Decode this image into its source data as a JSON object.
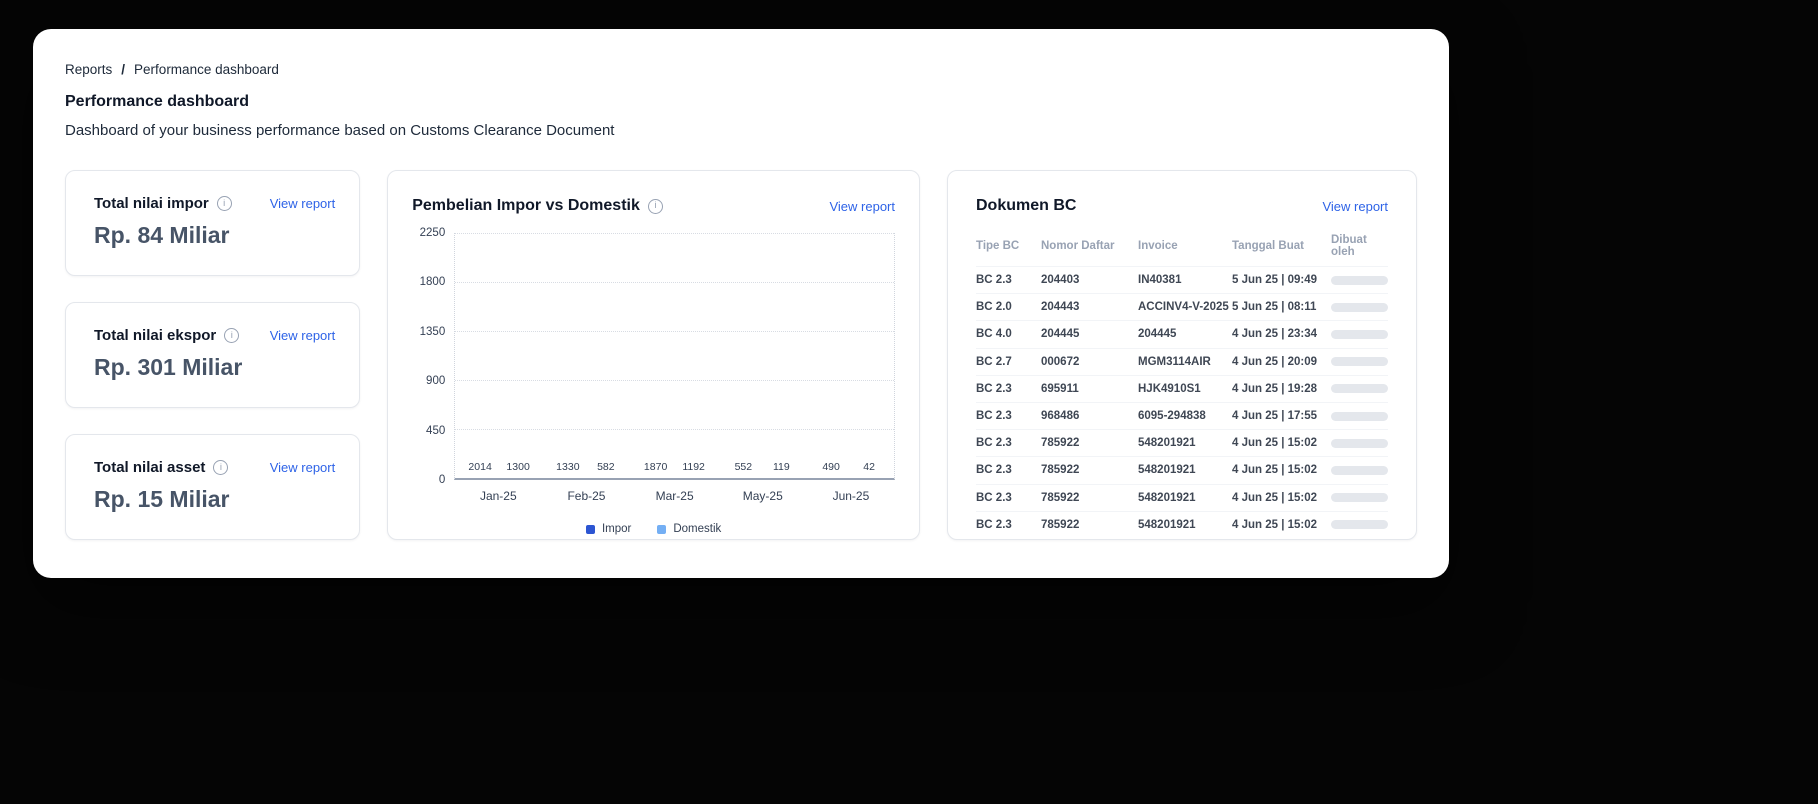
{
  "breadcrumb": {
    "items": [
      "Reports",
      "Performance dashboard"
    ],
    "separator": "/"
  },
  "page": {
    "title": "Performance dashboard",
    "subtitle": "Dashboard of your business performance based on Customs Clearance Document"
  },
  "view_report_label": "View report",
  "stat_cards": [
    {
      "label": "Total nilai impor",
      "value": "Rp. 84 Miliar"
    },
    {
      "label": "Total nilai ekspor",
      "value": "Rp. 301 Miliar"
    },
    {
      "label": "Total nilai asset",
      "value": "Rp. 15 Miliar"
    }
  ],
  "chart_card": {
    "title": "Pembelian Impor vs Domestik",
    "view_report": "View report"
  },
  "chart_data": {
    "type": "bar",
    "title": "Pembelian Impor vs Domestik",
    "categories": [
      "Jan-25",
      "Feb-25",
      "Mar-25",
      "May-25",
      "Jun-25"
    ],
    "series": [
      {
        "name": "Impor",
        "color": "#4B7CE8",
        "legend_color": "#2C55D2",
        "values": [
          2014,
          1330,
          1870,
          552,
          490
        ]
      },
      {
        "name": "Domestik",
        "color": "#AED2FA",
        "legend_color": "#74AFF4",
        "values": [
          1300,
          582,
          1192,
          119,
          42
        ]
      }
    ],
    "ylim": [
      0,
      2250
    ],
    "yticks": [
      2250,
      1800,
      1350,
      900,
      450,
      0
    ],
    "grid": true,
    "legend_position": "bottom",
    "xlabel": "",
    "ylabel": ""
  },
  "table_card": {
    "title": "Dokumen BC",
    "view_report": "View report",
    "columns": [
      "Tipe BC",
      "Nomor Daftar",
      "Invoice",
      "Tanggal Buat",
      "Dibuat oleh"
    ],
    "rows": [
      {
        "tipe": "BC 2.3",
        "nomor": "204403",
        "invoice": "IN40381",
        "tanggal": "5 Jun 25 | 09:49"
      },
      {
        "tipe": "BC 2.0",
        "nomor": "204443",
        "invoice": "ACCINV4-V-2025",
        "tanggal": "5 Jun 25 | 08:11"
      },
      {
        "tipe": "BC 4.0",
        "nomor": "204445",
        "invoice": "204445",
        "tanggal": "4 Jun 25 | 23:34"
      },
      {
        "tipe": "BC 2.7",
        "nomor": "000672",
        "invoice": "MGM3114AIR",
        "tanggal": "4 Jun 25 | 20:09"
      },
      {
        "tipe": "BC 2.3",
        "nomor": "695911",
        "invoice": "HJK4910S1",
        "tanggal": "4 Jun 25 | 19:28"
      },
      {
        "tipe": "BC 2.3",
        "nomor": "968486",
        "invoice": "6095-294838",
        "tanggal": "4 Jun 25 | 17:55"
      },
      {
        "tipe": "BC 2.3",
        "nomor": "785922",
        "invoice": "548201921",
        "tanggal": "4 Jun 25 | 15:02"
      },
      {
        "tipe": "BC 2.3",
        "nomor": "785922",
        "invoice": "548201921",
        "tanggal": "4 Jun 25 | 15:02"
      },
      {
        "tipe": "BC 2.3",
        "nomor": "785922",
        "invoice": "548201921",
        "tanggal": "4 Jun 25 | 15:02"
      },
      {
        "tipe": "BC 2.3",
        "nomor": "785922",
        "invoice": "548201921",
        "tanggal": "4 Jun 25 | 15:02"
      }
    ]
  },
  "colors": {
    "accent": "#2E63E7",
    "axis": "#98A2B3",
    "skeleton": "#E4E7EC"
  }
}
